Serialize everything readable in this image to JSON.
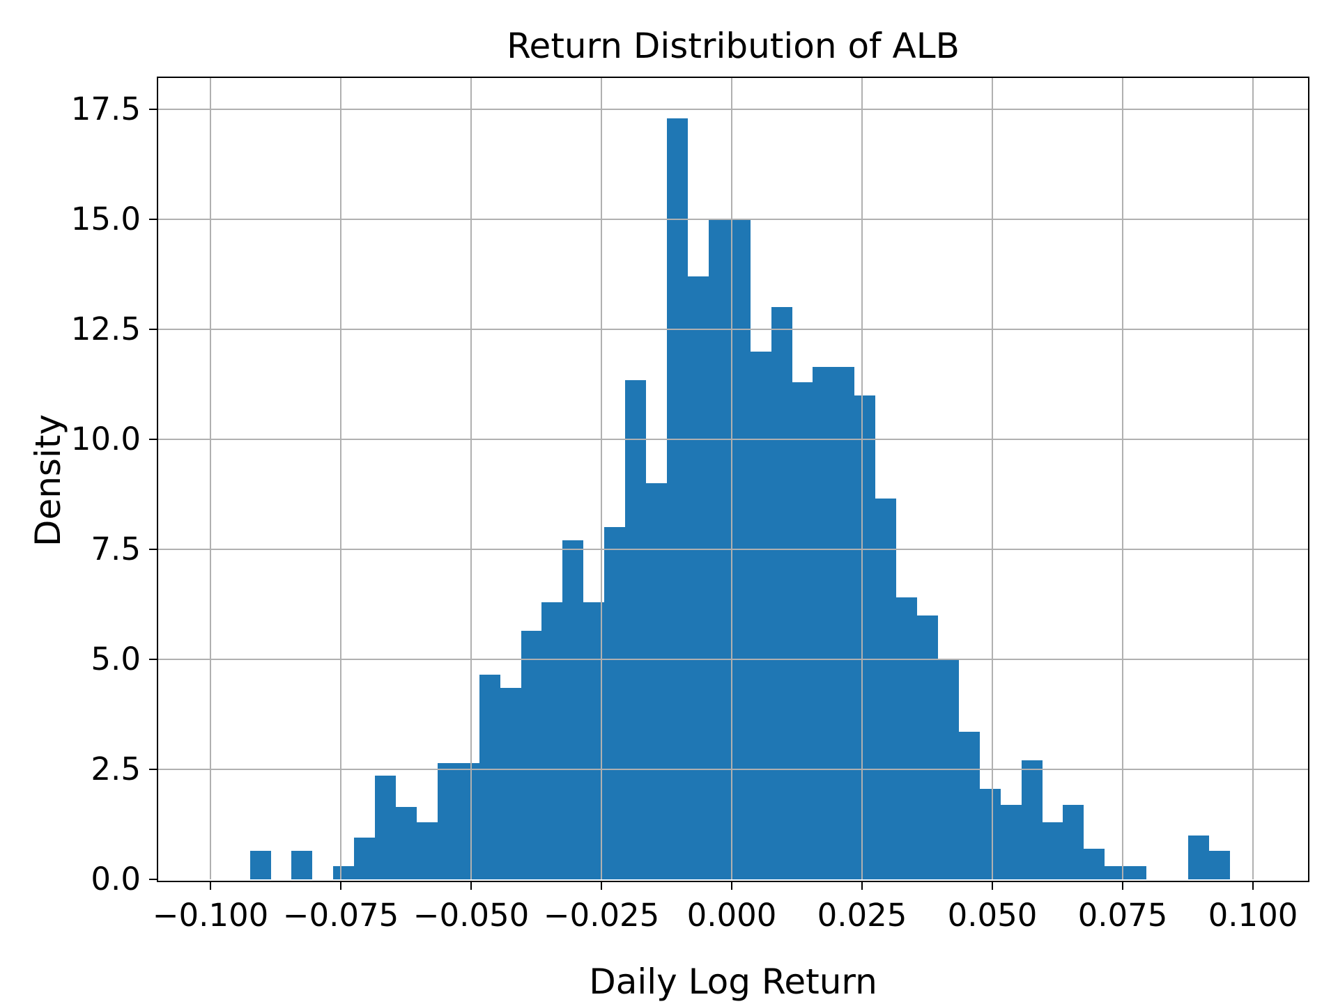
{
  "chart_data": {
    "type": "histogram",
    "title": "Return Distribution of ALB",
    "xlabel": "Daily Log Return",
    "ylabel": "Density",
    "bar_color": "#1f77b4",
    "grid_color": "#b0b0b0",
    "spine_color": "#000000",
    "background_color": "#ffffff",
    "grid": true,
    "legend": false,
    "xlim": [
      -0.11,
      0.1106
    ],
    "ylim": [
      0,
      18.21
    ],
    "bin_start": -0.0924,
    "bin_width": 0.004,
    "densities": [
      0.65,
      0,
      0.65,
      0,
      0.3,
      0.95,
      2.35,
      1.65,
      1.3,
      2.65,
      2.65,
      4.65,
      4.35,
      5.65,
      6.3,
      7.7,
      6.3,
      8.0,
      11.35,
      9.0,
      17.3,
      13.7,
      15.0,
      15.0,
      12.0,
      13.0,
      11.3,
      11.65,
      11.65,
      11.0,
      8.65,
      6.4,
      6.0,
      5.0,
      3.35,
      2.05,
      1.7,
      2.7,
      1.3,
      1.7,
      0.7,
      0.3,
      0.3,
      0,
      0,
      1.0,
      0.65
    ],
    "x_ticks": [
      {
        "value": -0.1,
        "label": "−0.100"
      },
      {
        "value": -0.075,
        "label": "−0.075"
      },
      {
        "value": -0.05,
        "label": "−0.050"
      },
      {
        "value": -0.025,
        "label": "−0.025"
      },
      {
        "value": 0.0,
        "label": "0.000"
      },
      {
        "value": 0.025,
        "label": "0.025"
      },
      {
        "value": 0.05,
        "label": "0.050"
      },
      {
        "value": 0.075,
        "label": "0.075"
      },
      {
        "value": 0.1,
        "label": "0.100"
      }
    ],
    "y_ticks": [
      {
        "value": 0.0,
        "label": "0.0"
      },
      {
        "value": 2.5,
        "label": "2.5"
      },
      {
        "value": 5.0,
        "label": "5.0"
      },
      {
        "value": 7.5,
        "label": "7.5"
      },
      {
        "value": 10.0,
        "label": "10.0"
      },
      {
        "value": 12.5,
        "label": "12.5"
      },
      {
        "value": 15.0,
        "label": "15.0"
      },
      {
        "value": 17.5,
        "label": "17.5"
      }
    ]
  }
}
